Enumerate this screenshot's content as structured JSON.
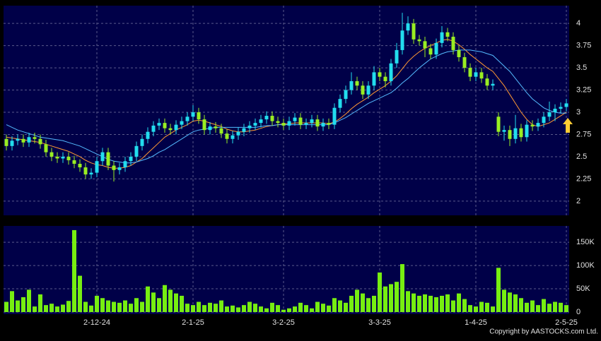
{
  "chart_data": [
    {
      "type": "candlestick",
      "up_color": "#22ddee",
      "down_color": "#99ee22",
      "ylim": [
        1.84,
        4.2
      ],
      "yticks": [
        2,
        2.25,
        2.5,
        2.75,
        3,
        3.25,
        3.5,
        3.75,
        4
      ],
      "grid": true,
      "open": [
        2.7,
        2.62,
        2.68,
        2.7,
        2.66,
        2.72,
        2.7,
        2.64,
        2.55,
        2.5,
        2.48,
        2.5,
        2.46,
        2.42,
        2.38,
        2.3,
        2.32,
        2.45,
        2.55,
        2.4,
        2.35,
        2.38,
        2.45,
        2.5,
        2.62,
        2.7,
        2.78,
        2.85,
        2.88,
        2.82,
        2.8,
        2.86,
        2.9,
        2.95,
        3.0,
        2.92,
        2.8,
        2.84,
        2.82,
        2.76,
        2.7,
        2.74,
        2.78,
        2.82,
        2.85,
        2.88,
        2.92,
        2.96,
        2.9,
        2.88,
        2.85,
        2.9,
        2.94,
        2.86,
        2.88,
        2.92,
        2.84,
        2.88,
        2.86,
        3.05,
        3.15,
        3.25,
        3.35,
        3.3,
        3.2,
        3.3,
        3.45,
        3.4,
        3.35,
        3.55,
        3.7,
        3.92,
        4.0,
        3.82,
        3.8,
        3.72,
        3.65,
        3.78,
        3.9,
        3.85,
        3.7,
        3.62,
        3.5,
        3.4,
        3.45,
        3.38,
        3.3,
        2.95,
        2.78,
        2.8,
        2.7,
        2.82,
        2.72,
        2.86,
        2.84,
        2.88,
        2.95,
        3.0,
        3.04,
        3.06
      ],
      "high": [
        2.75,
        2.73,
        2.75,
        2.75,
        2.77,
        2.77,
        2.75,
        2.69,
        2.6,
        2.55,
        2.55,
        2.55,
        2.51,
        2.47,
        2.43,
        2.37,
        2.5,
        2.6,
        2.6,
        2.45,
        2.43,
        2.5,
        2.55,
        2.67,
        2.75,
        2.83,
        2.9,
        2.93,
        2.93,
        2.87,
        2.91,
        2.95,
        3.0,
        3.08,
        3.05,
        2.97,
        2.89,
        2.89,
        2.87,
        2.81,
        2.79,
        2.83,
        2.87,
        2.9,
        2.93,
        2.97,
        3.01,
        3.01,
        2.95,
        2.93,
        2.95,
        2.99,
        2.99,
        2.93,
        2.97,
        2.97,
        2.93,
        2.93,
        3.1,
        3.2,
        3.3,
        3.45,
        3.4,
        3.35,
        3.35,
        3.52,
        3.5,
        3.45,
        3.6,
        3.78,
        4.12,
        4.08,
        4.05,
        3.87,
        3.85,
        3.77,
        3.83,
        3.97,
        3.95,
        3.9,
        3.75,
        3.67,
        3.55,
        3.5,
        3.5,
        3.43,
        3.37,
        3.0,
        2.85,
        2.85,
        2.97,
        2.87,
        2.91,
        2.91,
        2.93,
        3.0,
        3.12,
        3.09,
        3.11,
        3.15
      ],
      "low": [
        2.57,
        2.57,
        2.63,
        2.61,
        2.61,
        2.65,
        2.59,
        2.5,
        2.45,
        2.43,
        2.43,
        2.41,
        2.37,
        2.33,
        2.25,
        2.25,
        2.27,
        2.4,
        2.35,
        2.22,
        2.3,
        2.33,
        2.4,
        2.45,
        2.57,
        2.65,
        2.73,
        2.8,
        2.77,
        2.75,
        2.75,
        2.81,
        2.85,
        2.9,
        2.87,
        2.75,
        2.75,
        2.77,
        2.71,
        2.65,
        2.65,
        2.69,
        2.73,
        2.77,
        2.8,
        2.83,
        2.87,
        2.85,
        2.83,
        2.8,
        2.8,
        2.85,
        2.81,
        2.81,
        2.83,
        2.79,
        2.79,
        2.81,
        2.81,
        3.0,
        3.1,
        3.2,
        3.25,
        3.15,
        3.15,
        3.25,
        3.35,
        3.28,
        3.3,
        3.5,
        3.65,
        3.87,
        3.77,
        3.75,
        3.62,
        3.6,
        3.6,
        3.73,
        3.8,
        3.65,
        3.57,
        3.45,
        3.35,
        3.35,
        3.33,
        3.25,
        3.25,
        2.73,
        2.68,
        2.62,
        2.65,
        2.67,
        2.67,
        2.79,
        2.79,
        2.83,
        2.9,
        2.9,
        2.99,
        3.01
      ],
      "close": [
        2.62,
        2.68,
        2.7,
        2.66,
        2.72,
        2.7,
        2.64,
        2.55,
        2.5,
        2.48,
        2.5,
        2.46,
        2.42,
        2.38,
        2.3,
        2.32,
        2.45,
        2.55,
        2.4,
        2.35,
        2.38,
        2.45,
        2.5,
        2.62,
        2.7,
        2.78,
        2.85,
        2.88,
        2.82,
        2.8,
        2.86,
        2.9,
        2.95,
        3.0,
        2.92,
        2.8,
        2.84,
        2.82,
        2.76,
        2.7,
        2.74,
        2.78,
        2.82,
        2.85,
        2.88,
        2.92,
        2.96,
        2.9,
        2.88,
        2.85,
        2.9,
        2.94,
        2.86,
        2.88,
        2.92,
        2.84,
        2.88,
        2.86,
        3.05,
        3.15,
        3.25,
        3.35,
        3.3,
        3.2,
        3.3,
        3.45,
        3.4,
        3.35,
        3.55,
        3.7,
        3.92,
        4.0,
        3.82,
        3.8,
        3.72,
        3.65,
        3.78,
        3.9,
        3.85,
        3.7,
        3.62,
        3.5,
        3.4,
        3.45,
        3.38,
        3.3,
        3.32,
        2.78,
        2.8,
        2.7,
        2.82,
        2.72,
        2.86,
        2.84,
        2.88,
        2.95,
        3.0,
        3.04,
        3.06,
        3.1
      ],
      "lines": [
        {
          "color": "#ff9933",
          "values": [
            2.72,
            2.71,
            2.7,
            2.69,
            2.68,
            2.67,
            2.66,
            2.64,
            2.62,
            2.6,
            2.58,
            2.56,
            2.53,
            2.5,
            2.46,
            2.43,
            2.41,
            2.4,
            2.38,
            2.37,
            2.37,
            2.38,
            2.4,
            2.44,
            2.48,
            2.54,
            2.6,
            2.66,
            2.72,
            2.76,
            2.8,
            2.83,
            2.86,
            2.9,
            2.91,
            2.9,
            2.88,
            2.86,
            2.84,
            2.81,
            2.79,
            2.78,
            2.78,
            2.79,
            2.8,
            2.82,
            2.84,
            2.85,
            2.86,
            2.87,
            2.87,
            2.88,
            2.88,
            2.88,
            2.88,
            2.88,
            2.88,
            2.87,
            2.89,
            2.93,
            2.98,
            3.04,
            3.09,
            3.13,
            3.17,
            3.22,
            3.26,
            3.3,
            3.35,
            3.41,
            3.49,
            3.57,
            3.63,
            3.68,
            3.72,
            3.75,
            3.78,
            3.81,
            3.82,
            3.8,
            3.76,
            3.71,
            3.65,
            3.6,
            3.55,
            3.5,
            3.46,
            3.38,
            3.3,
            3.2,
            3.1,
            3.0,
            2.92,
            2.86,
            2.84,
            2.86,
            2.88,
            2.92,
            2.96,
            3.0
          ]
        },
        {
          "color": "#55bbff",
          "values": [
            2.86,
            2.83,
            2.8,
            2.78,
            2.76,
            2.74,
            2.72,
            2.71,
            2.7,
            2.69,
            2.68,
            2.66,
            2.64,
            2.62,
            2.59,
            2.56,
            2.53,
            2.5,
            2.47,
            2.45,
            2.44,
            2.43,
            2.43,
            2.44,
            2.46,
            2.48,
            2.51,
            2.55,
            2.58,
            2.62,
            2.66,
            2.7,
            2.74,
            2.78,
            2.8,
            2.81,
            2.82,
            2.83,
            2.83,
            2.83,
            2.83,
            2.83,
            2.83,
            2.83,
            2.83,
            2.84,
            2.85,
            2.85,
            2.86,
            2.86,
            2.86,
            2.86,
            2.86,
            2.86,
            2.86,
            2.86,
            2.86,
            2.86,
            2.88,
            2.91,
            2.94,
            2.98,
            3.02,
            3.06,
            3.1,
            3.13,
            3.16,
            3.19,
            3.22,
            3.27,
            3.33,
            3.38,
            3.44,
            3.5,
            3.55,
            3.6,
            3.63,
            3.66,
            3.68,
            3.69,
            3.7,
            3.7,
            3.7,
            3.69,
            3.68,
            3.66,
            3.64,
            3.58,
            3.52,
            3.46,
            3.38,
            3.3,
            3.22,
            3.15,
            3.1,
            3.05,
            3.02,
            3.0,
            2.99,
            2.99
          ]
        }
      ]
    },
    {
      "type": "bar",
      "color": "#77ee11",
      "ylim": [
        -4500,
        185000
      ],
      "yticks": [
        0,
        {
          "value": 50000,
          "label": "50K"
        },
        {
          "value": 100000,
          "label": "100K"
        },
        {
          "value": 150000,
          "label": "150K"
        }
      ],
      "grid": true,
      "categories": [
        null,
        null,
        null,
        null,
        null,
        null,
        null,
        null,
        null,
        null,
        null,
        null,
        null,
        null,
        null,
        null,
        "2-12-24",
        null,
        null,
        null,
        null,
        null,
        null,
        null,
        null,
        null,
        null,
        null,
        null,
        null,
        null,
        null,
        null,
        "2-1-25",
        null,
        null,
        null,
        null,
        null,
        null,
        null,
        null,
        null,
        null,
        null,
        null,
        null,
        null,
        null,
        "3-2-25",
        null,
        null,
        null,
        null,
        null,
        null,
        null,
        null,
        null,
        null,
        null,
        null,
        null,
        null,
        null,
        null,
        "3-3-25",
        null,
        null,
        null,
        null,
        null,
        null,
        null,
        null,
        null,
        null,
        null,
        null,
        null,
        null,
        null,
        null,
        "1-4-25",
        null,
        null,
        null,
        null,
        null,
        null,
        null,
        null,
        null,
        null,
        null,
        null,
        null,
        null,
        null,
        "2-5-25"
      ],
      "values": [
        22000,
        45000,
        25000,
        32000,
        48000,
        12000,
        38000,
        15000,
        18000,
        12000,
        16000,
        24000,
        176000,
        78000,
        22000,
        14000,
        35000,
        30000,
        25000,
        22000,
        20000,
        25000,
        18000,
        30000,
        22000,
        55000,
        42000,
        30000,
        58000,
        48000,
        40000,
        35000,
        18000,
        15000,
        22000,
        15000,
        20000,
        18000,
        25000,
        12000,
        14000,
        10000,
        15000,
        22000,
        18000,
        12000,
        8000,
        20000,
        15000,
        5000,
        8000,
        12000,
        20000,
        15000,
        8000,
        22000,
        18000,
        14000,
        30000,
        25000,
        20000,
        35000,
        48000,
        40000,
        30000,
        35000,
        85000,
        55000,
        60000,
        65000,
        103000,
        45000,
        40000,
        35000,
        38000,
        35000,
        32000,
        35000,
        38000,
        25000,
        40000,
        28000,
        15000,
        12000,
        22000,
        20000,
        12000,
        95000,
        48000,
        42000,
        38000,
        30000,
        20000,
        25000,
        15000,
        28000,
        18000,
        22000,
        20000,
        15000
      ]
    }
  ],
  "footer": "Copyright by AASTOCKS.com Ltd."
}
